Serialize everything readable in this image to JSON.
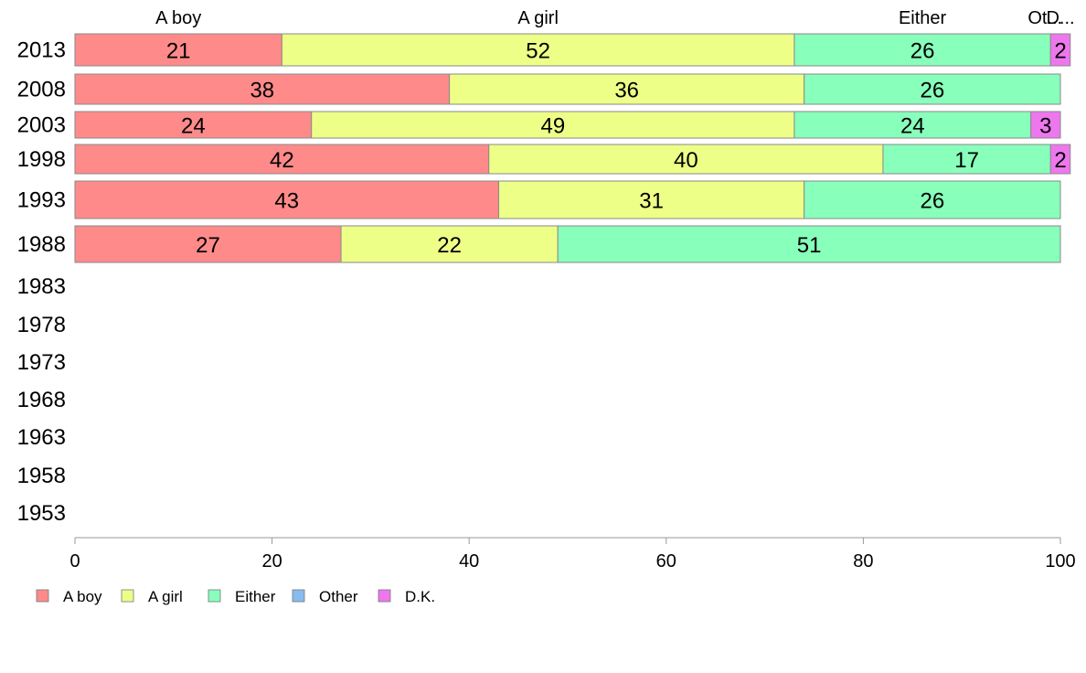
{
  "chart_data": {
    "type": "bar",
    "orientation": "horizontal",
    "stacked": true,
    "title": "",
    "xlabel": "",
    "ylabel": "",
    "xlim": [
      0,
      100
    ],
    "x_ticks": [
      0,
      20,
      40,
      60,
      80,
      100
    ],
    "grid": false,
    "legend_position": "bottom-left",
    "categories": [
      "2013",
      "2008",
      "2003",
      "1998",
      "1993",
      "1988",
      "1983",
      "1978",
      "1973",
      "1968",
      "1963",
      "1958",
      "1953"
    ],
    "top_labels": [
      "A boy",
      "A girl",
      "Either",
      "Ot...",
      "D..."
    ],
    "series": [
      {
        "name": "A boy",
        "color": "#ff8a8a",
        "values": [
          21,
          38,
          24,
          42,
          43,
          27,
          null,
          null,
          null,
          null,
          null,
          null,
          null
        ]
      },
      {
        "name": "A girl",
        "color": "#eeff88",
        "values": [
          52,
          36,
          49,
          40,
          31,
          22,
          null,
          null,
          null,
          null,
          null,
          null,
          null
        ]
      },
      {
        "name": "Either",
        "color": "#88ffbb",
        "values": [
          26,
          26,
          24,
          17,
          26,
          51,
          null,
          null,
          null,
          null,
          null,
          null,
          null
        ]
      },
      {
        "name": "Other",
        "color": "#88bbee",
        "values": [
          0,
          0,
          0,
          0,
          0,
          0,
          null,
          null,
          null,
          null,
          null,
          null,
          null
        ]
      },
      {
        "name": "D.K.",
        "color": "#ee77ee",
        "values": [
          2,
          0,
          3,
          2,
          0,
          0,
          null,
          null,
          null,
          null,
          null,
          null,
          null
        ]
      }
    ]
  }
}
